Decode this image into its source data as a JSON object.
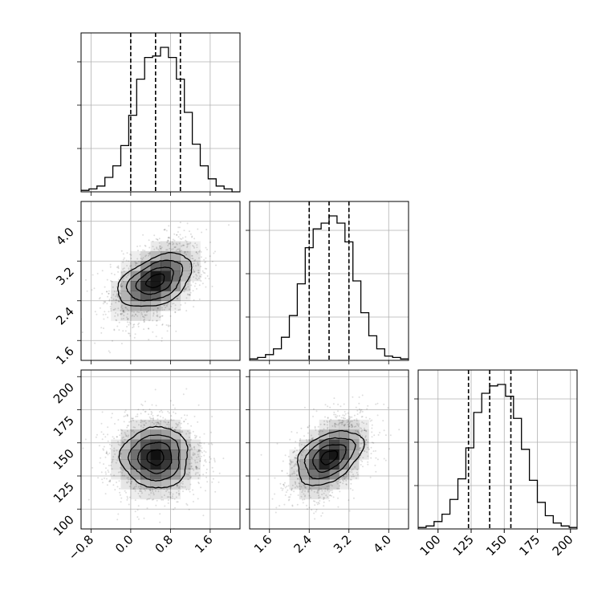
{
  "chart_data": {
    "type": "scatter",
    "subtype": "corner-plot",
    "title": "",
    "parameters": [
      {
        "index": 0,
        "ticks": [
          -0.8,
          0.0,
          0.8,
          1.6
        ],
        "tick_labels": [
          "−0.8",
          "0.0",
          "0.8",
          "1.6"
        ],
        "range": [
          -1.0,
          2.2
        ],
        "mean": 0.5,
        "sd": 0.47,
        "quantiles": [
          0.0,
          0.5,
          1.0
        ]
      },
      {
        "index": 1,
        "ticks": [
          1.6,
          2.4,
          3.2,
          4.0
        ],
        "tick_labels": [
          "1.6",
          "2.4",
          "3.2",
          "4.0"
        ],
        "range": [
          1.2,
          4.4
        ],
        "mean": 2.8,
        "sd": 0.42,
        "quantiles": [
          2.4,
          2.8,
          3.2
        ]
      },
      {
        "index": 2,
        "ticks": [
          100,
          125,
          150,
          175,
          200
        ],
        "tick_labels": [
          "100",
          "125",
          "150",
          "175",
          "200"
        ],
        "range": [
          85,
          205
        ],
        "mean": 139,
        "sd": 16,
        "quantiles": [
          123,
          139,
          155
        ]
      }
    ],
    "histograms": [
      {
        "param": 0,
        "bin_edges": [
          -1.0,
          -0.84,
          -0.68,
          -0.52,
          -0.36,
          -0.2,
          -0.04,
          0.12,
          0.28,
          0.44,
          0.6,
          0.76,
          0.92,
          1.08,
          1.24,
          1.4,
          1.56,
          1.72,
          1.88,
          2.04,
          2.2
        ],
        "counts": [
          1,
          2,
          4,
          10,
          18,
          32,
          53,
          78,
          93,
          94,
          100,
          93,
          78,
          55,
          33,
          18,
          9,
          4,
          2,
          0
        ]
      },
      {
        "param": 1,
        "bin_edges": [
          1.2,
          1.36,
          1.52,
          1.68,
          1.84,
          2.0,
          2.16,
          2.32,
          2.48,
          2.64,
          2.8,
          2.96,
          3.12,
          3.28,
          3.44,
          3.6,
          3.76,
          3.92,
          4.08,
          4.24,
          4.4
        ],
        "counts": [
          1,
          2,
          4,
          8,
          16,
          31,
          53,
          78,
          91,
          95,
          100,
          95,
          82,
          55,
          33,
          17,
          8,
          3,
          2,
          1
        ]
      },
      {
        "param": 2,
        "bin_edges": [
          85,
          91,
          97,
          103,
          109,
          115,
          121,
          127,
          133,
          139,
          145,
          151,
          157,
          163,
          169,
          175,
          181,
          187,
          193,
          199,
          205
        ],
        "counts": [
          1,
          2,
          5,
          10,
          20,
          34,
          55,
          79,
          92,
          97,
          98,
          90,
          75,
          54,
          33,
          18,
          9,
          4,
          2,
          1
        ]
      }
    ],
    "pairs": [
      {
        "x_param": 0,
        "y_param": 1,
        "correlation": 0.45
      },
      {
        "x_param": 0,
        "y_param": 2,
        "correlation": 0.0
      },
      {
        "x_param": 1,
        "y_param": 2,
        "correlation": 0.45
      }
    ],
    "grid": true,
    "legend": "none"
  }
}
